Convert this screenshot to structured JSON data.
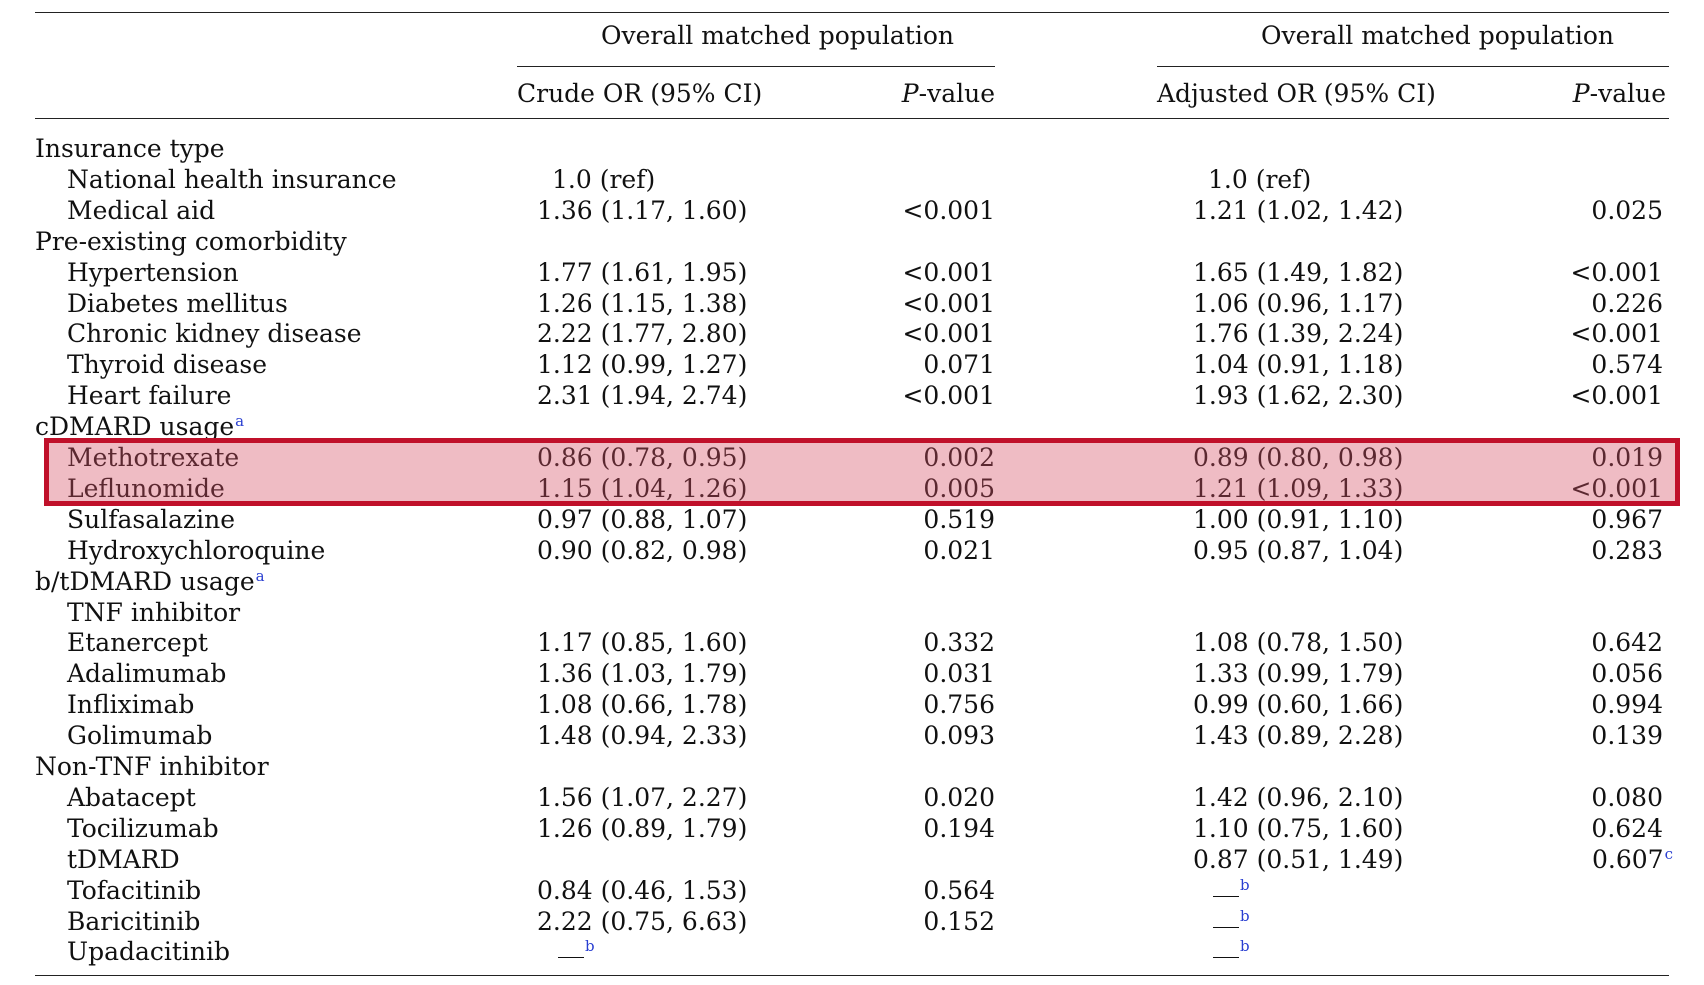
{
  "header": {
    "group_left": "Overall matched population",
    "group_right": "Overall matched population",
    "col_crude": "Crude OR (95% CI)",
    "col_p_crude_italic": "P",
    "col_p_crude_rest": "-value",
    "col_adjusted": "Adjusted OR (95% CI)",
    "col_p_adj_italic": "P",
    "col_p_adj_rest": "-value"
  },
  "rows": [
    {
      "label": "Insurance type",
      "indent": false
    },
    {
      "label": "National health insurance",
      "indent": true,
      "crude": "1.0 (ref)",
      "adj": "1.0 (ref)",
      "ref": true
    },
    {
      "label": "Medical aid",
      "indent": true,
      "crude": "1.36 (1.17, 1.60)",
      "crude_p": "<0.001",
      "adj": "1.21 (1.02, 1.42)",
      "adj_p": "0.025"
    },
    {
      "label": "Pre-existing comorbidity",
      "indent": false
    },
    {
      "label": "Hypertension",
      "indent": true,
      "crude": "1.77 (1.61, 1.95)",
      "crude_p": "<0.001",
      "adj": "1.65 (1.49, 1.82)",
      "adj_p": "<0.001"
    },
    {
      "label": "Diabetes mellitus",
      "indent": true,
      "crude": "1.26 (1.15, 1.38)",
      "crude_p": "<0.001",
      "adj": "1.06 (0.96, 1.17)",
      "adj_p": "0.226"
    },
    {
      "label": "Chronic kidney disease",
      "indent": true,
      "crude": "2.22 (1.77, 2.80)",
      "crude_p": "<0.001",
      "adj": "1.76 (1.39, 2.24)",
      "adj_p": "<0.001"
    },
    {
      "label": "Thyroid disease",
      "indent": true,
      "crude": "1.12 (0.99, 1.27)",
      "crude_p": "0.071",
      "adj": "1.04 (0.91, 1.18)",
      "adj_p": "0.574"
    },
    {
      "label": "Heart failure",
      "indent": true,
      "crude": "2.31 (1.94, 2.74)",
      "crude_p": "<0.001",
      "adj": "1.93 (1.62, 2.30)",
      "adj_p": "<0.001"
    },
    {
      "label": "cDMARD usage",
      "indent": false,
      "sup": "a"
    },
    {
      "label": "Methotrexate",
      "indent": true,
      "crude": "0.86 (0.78, 0.95)",
      "crude_p": "0.002",
      "adj": "0.89 (0.80, 0.98)",
      "adj_p": "0.019"
    },
    {
      "label": "Leflunomide",
      "indent": true,
      "crude": "1.15 (1.04, 1.26)",
      "crude_p": "0.005",
      "adj": "1.21 (1.09, 1.33)",
      "adj_p": "<0.001"
    },
    {
      "label": "Sulfasalazine",
      "indent": true,
      "crude": "0.97 (0.88, 1.07)",
      "crude_p": "0.519",
      "adj": "1.00 (0.91, 1.10)",
      "adj_p": "0.967"
    },
    {
      "label": "Hydroxychloroquine",
      "indent": true,
      "crude": "0.90 (0.82, 0.98)",
      "crude_p": "0.021",
      "adj": "0.95 (0.87, 1.04)",
      "adj_p": "0.283"
    },
    {
      "label": "b/tDMARD usage",
      "indent": false,
      "sup": "a"
    },
    {
      "label": "TNF inhibitor",
      "indent": true
    },
    {
      "label": "Etanercept",
      "indent": true,
      "crude": "1.17 (0.85, 1.60)",
      "crude_p": "0.332",
      "adj": "1.08 (0.78, 1.50)",
      "adj_p": "0.642"
    },
    {
      "label": "Adalimumab",
      "indent": true,
      "crude": "1.36 (1.03, 1.79)",
      "crude_p": "0.031",
      "adj": "1.33 (0.99, 1.79)",
      "adj_p": "0.056"
    },
    {
      "label": "Infliximab",
      "indent": true,
      "crude": "1.08 (0.66, 1.78)",
      "crude_p": "0.756",
      "adj": "0.99 (0.60, 1.66)",
      "adj_p": "0.994"
    },
    {
      "label": "Golimumab",
      "indent": true,
      "crude": "1.48 (0.94, 2.33)",
      "crude_p": "0.093",
      "adj": "1.43 (0.89, 2.28)",
      "adj_p": "0.139"
    },
    {
      "label": "Non-TNF inhibitor",
      "indent": false
    },
    {
      "label": "Abatacept",
      "indent": true,
      "crude": "1.56 (1.07, 2.27)",
      "crude_p": "0.020",
      "adj": "1.42 (0.96, 2.10)",
      "adj_p": "0.080"
    },
    {
      "label": "Tocilizumab",
      "indent": true,
      "crude": "1.26 (0.89, 1.79)",
      "crude_p": "0.194",
      "adj": "1.10 (0.75, 1.60)",
      "adj_p": "0.624"
    },
    {
      "label": "tDMARD",
      "indent": true,
      "adj": "0.87 (0.51, 1.49)",
      "adj_p": "0.607",
      "adj_p_sup": "c"
    },
    {
      "label": "Tofacitinib",
      "indent": true,
      "crude": "0.84 (0.46, 1.53)",
      "crude_p": "0.564",
      "adj_dash_sup": "b"
    },
    {
      "label": "Baricitinib",
      "indent": true,
      "crude": "2.22 (0.75, 6.63)",
      "crude_p": "0.152",
      "adj_dash_sup": "b"
    },
    {
      "label": "Upadacitinib",
      "indent": true,
      "crude_dash_sup": "b",
      "adj_dash_sup": "b"
    }
  ],
  "highlight": {
    "color": "#c0102a",
    "rows": [
      "Methotrexate",
      "Leflunomide"
    ]
  }
}
